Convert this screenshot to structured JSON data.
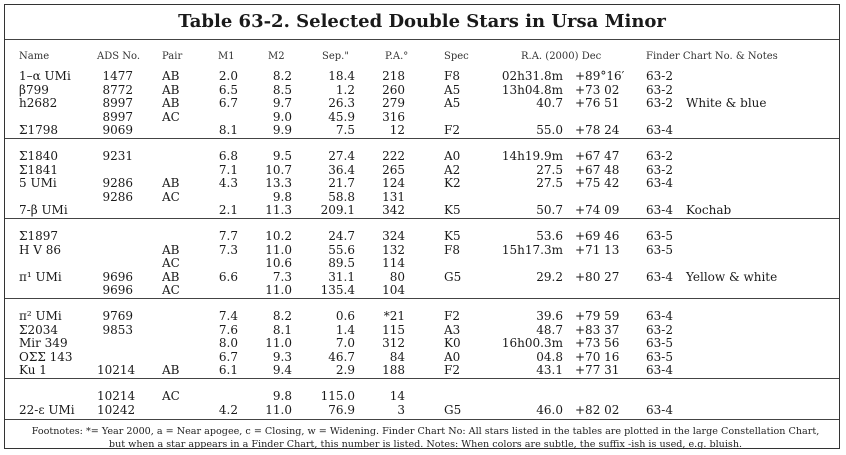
{
  "title": "Table 63-2. Selected Double Stars in Ursa Minor",
  "headers": {
    "name": "Name",
    "ads": "ADS No.",
    "pair": "Pair",
    "m1": "M1",
    "m2": "M2",
    "sep": "Sep.\"",
    "pa": "P.A.°",
    "spec": "Spec",
    "radec": "R.A.  (2000)  Dec",
    "finder": "Finder Chart No. & Notes"
  },
  "groups": [
    [
      {
        "name": "1–α UMi",
        "ads": "1477",
        "pair": "AB",
        "m1": "2.0",
        "m2": "8.2",
        "sep": "18.4",
        "pa": "218",
        "spec": "F8",
        "ra": "02h31.8m",
        "dec": "+89°16′",
        "finder": "63-2",
        "notes": ""
      },
      {
        "name": "β799",
        "ads": "8772",
        "pair": "AB",
        "m1": "6.5",
        "m2": "8.5",
        "sep": "1.2",
        "pa": "260",
        "spec": "A5",
        "ra": "13h04.8m",
        "dec": "+73 02",
        "finder": "63-2",
        "notes": ""
      },
      {
        "name": "h2682",
        "ads": "8997",
        "pair": "AB",
        "m1": "6.7",
        "m2": "9.7",
        "sep": "26.3",
        "pa": "279",
        "spec": "A5",
        "ra": "40.7",
        "dec": "+76 51",
        "finder": "63-2",
        "notes": "White & blue"
      },
      {
        "name": "",
        "ads": "8997",
        "pair": "AC",
        "m1": "",
        "m2": "9.0",
        "sep": "45.9",
        "pa": "316",
        "spec": "",
        "ra": "",
        "dec": "",
        "finder": "",
        "notes": ""
      },
      {
        "name": "Σ1798",
        "ads": "9069",
        "pair": "",
        "m1": "8.1",
        "m2": "9.9",
        "sep": "7.5",
        "pa": "12",
        "spec": "F2",
        "ra": "55.0",
        "dec": "+78 24",
        "finder": "63-4",
        "notes": ""
      }
    ],
    [
      {
        "name": "Σ1840",
        "ads": "9231",
        "pair": "",
        "m1": "6.8",
        "m2": "9.5",
        "sep": "27.4",
        "pa": "222",
        "spec": "A0",
        "ra": "14h19.9m",
        "dec": "+67 47",
        "finder": "63-2",
        "notes": ""
      },
      {
        "name": "Σ1841",
        "ads": "",
        "pair": "",
        "m1": "7.1",
        "m2": "10.7",
        "sep": "36.4",
        "pa": "265",
        "spec": "A2",
        "ra": "27.5",
        "dec": "+67 48",
        "finder": "63-2",
        "notes": ""
      },
      {
        "name": "5 UMi",
        "ads": "9286",
        "pair": "AB",
        "m1": "4.3",
        "m2": "13.3",
        "sep": "21.7",
        "pa": "124",
        "spec": "K2",
        "ra": "27.5",
        "dec": "+75 42",
        "finder": "63-4",
        "notes": ""
      },
      {
        "name": "",
        "ads": "9286",
        "pair": "AC",
        "m1": "",
        "m2": "9.8",
        "sep": "58.8",
        "pa": "131",
        "spec": "",
        "ra": "",
        "dec": "",
        "finder": "",
        "notes": ""
      },
      {
        "name": "7-β UMi",
        "ads": "",
        "pair": "",
        "m1": "2.1",
        "m2": "11.3",
        "sep": "209.1",
        "pa": "342",
        "spec": "K5",
        "ra": "50.7",
        "dec": "+74 09",
        "finder": "63-4",
        "notes": "Kochab"
      }
    ],
    [
      {
        "name": "Σ1897",
        "ads": "",
        "pair": "",
        "m1": "7.7",
        "m2": "10.2",
        "sep": "24.7",
        "pa": "324",
        "spec": "K5",
        "ra": "53.6",
        "dec": "+69 46",
        "finder": "63-5",
        "notes": ""
      },
      {
        "name": "H V 86",
        "ads": "",
        "pair": "AB",
        "m1": "7.3",
        "m2": "11.0",
        "sep": "55.6",
        "pa": "132",
        "spec": "F8",
        "ra": "15h17.3m",
        "dec": "+71 13",
        "finder": "63-5",
        "notes": ""
      },
      {
        "name": "",
        "ads": "",
        "pair": "AC",
        "m1": "",
        "m2": "10.6",
        "sep": "89.5",
        "pa": "114",
        "spec": "",
        "ra": "",
        "dec": "",
        "finder": "",
        "notes": ""
      },
      {
        "name": "π¹ UMi",
        "ads": "9696",
        "pair": "AB",
        "m1": "6.6",
        "m2": "7.3",
        "sep": "31.1",
        "pa": "80",
        "spec": "G5",
        "ra": "29.2",
        "dec": "+80 27",
        "finder": "63-4",
        "notes": "Yellow & white"
      },
      {
        "name": "",
        "ads": "9696",
        "pair": "AC",
        "m1": "",
        "m2": "11.0",
        "sep": "135.4",
        "pa": "104",
        "spec": "",
        "ra": "",
        "dec": "",
        "finder": "",
        "notes": ""
      }
    ],
    [
      {
        "name": "π² UMi",
        "ads": "9769",
        "pair": "",
        "m1": "7.4",
        "m2": "8.2",
        "sep": "0.6",
        "pa": "*21",
        "spec": "F2",
        "ra": "39.6",
        "dec": "+79 59",
        "finder": "63-4",
        "notes": ""
      },
      {
        "name": "Σ2034",
        "ads": "9853",
        "pair": "",
        "m1": "7.6",
        "m2": "8.1",
        "sep": "1.4",
        "pa": "115",
        "spec": "A3",
        "ra": "48.7",
        "dec": "+83 37",
        "finder": "63-2",
        "notes": ""
      },
      {
        "name": "Mir 349",
        "ads": "",
        "pair": "",
        "m1": "8.0",
        "m2": "11.0",
        "sep": "7.0",
        "pa": "312",
        "spec": "K0",
        "ra": "16h00.3m",
        "dec": "+73 56",
        "finder": "63-5",
        "notes": ""
      },
      {
        "name": "OΣΣ 143",
        "ads": "",
        "pair": "",
        "m1": "6.7",
        "m2": "9.3",
        "sep": "46.7",
        "pa": "84",
        "spec": "A0",
        "ra": "04.8",
        "dec": "+70 16",
        "finder": "63-5",
        "notes": ""
      },
      {
        "name": "Ku 1",
        "ads": "10214",
        "pair": "AB",
        "m1": "6.1",
        "m2": "9.4",
        "sep": "2.9",
        "pa": "188",
        "spec": "F2",
        "ra": "43.1",
        "dec": "+77 31",
        "finder": "63-4",
        "notes": ""
      }
    ],
    [
      {
        "name": "",
        "ads": "10214",
        "pair": "AC",
        "m1": "",
        "m2": "9.8",
        "sep": "115.0",
        "pa": "14",
        "spec": "",
        "ra": "",
        "dec": "",
        "finder": "",
        "notes": ""
      },
      {
        "name": "22-ε UMi",
        "ads": "10242",
        "pair": "",
        "m1": "4.2",
        "m2": "11.0",
        "sep": "76.9",
        "pa": "3",
        "spec": "G5",
        "ra": "46.0",
        "dec": "+82 02",
        "finder": "63-4",
        "notes": ""
      }
    ]
  ],
  "footnote": "Footnotes: *= Year 2000, a = Near apogee, c = Closing, w = Widening. Finder Chart No: All stars listed in the tables are plotted in the large Constellation Chart, but when a star appears in a Finder Chart, this number is listed. Notes: When colors are subtle, the suffix -ish is used, e.g. bluish."
}
